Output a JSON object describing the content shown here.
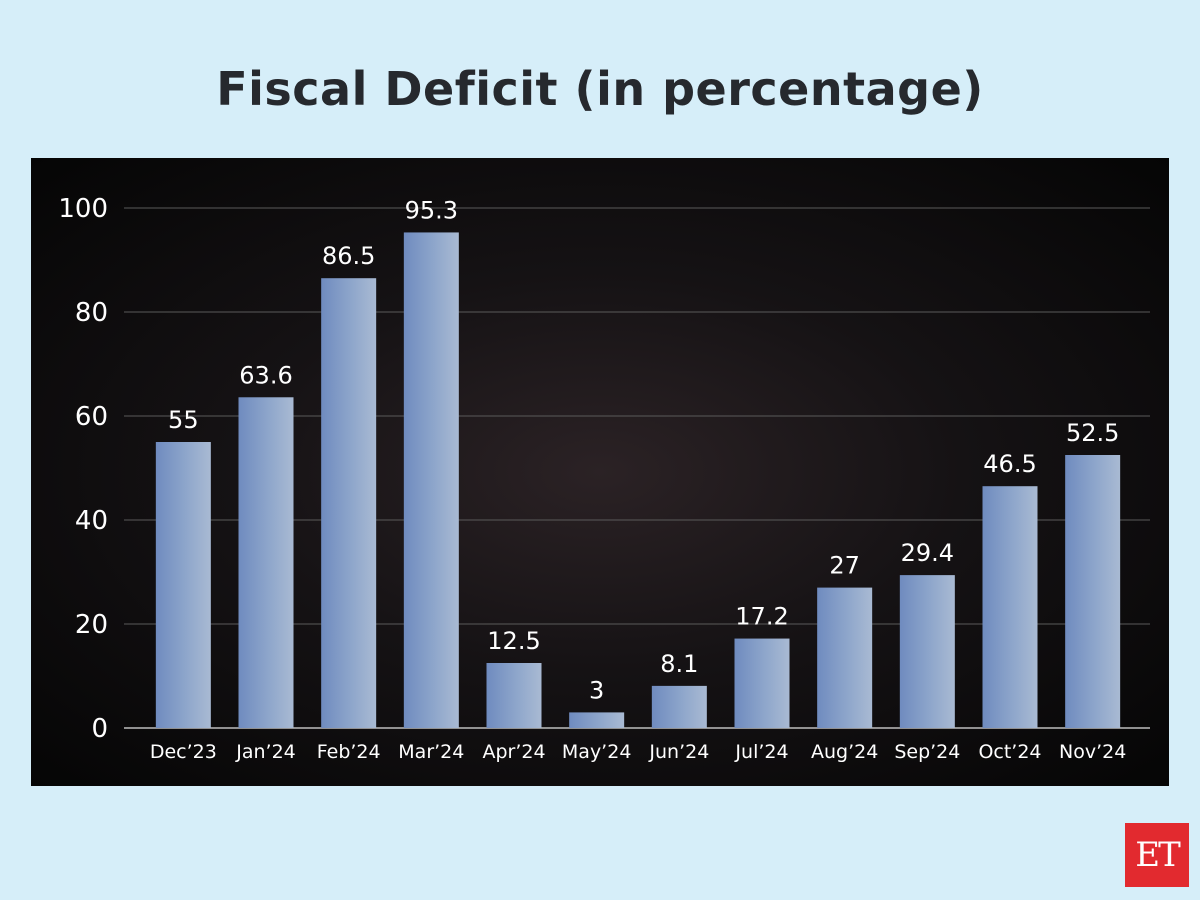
{
  "chart_data": {
    "type": "bar",
    "title": "Fiscal Deficit (in percentage)",
    "categories": [
      "Dec’23",
      "Jan’24",
      "Feb’24",
      "Mar’24",
      "Apr’24",
      "May’24",
      "Jun’24",
      "Jul’24",
      "Aug’24",
      "Sep’24",
      "Oct’24",
      "Nov’24"
    ],
    "values": [
      55,
      63.6,
      86.5,
      95.3,
      12.5,
      3,
      8.1,
      17.2,
      27,
      29.4,
      46.5,
      52.5
    ],
    "value_labels": [
      "55",
      "63.6",
      "86.5",
      "95.3",
      "12.5",
      "3",
      "8.1",
      "17.2",
      "27",
      "29.4",
      "46.5",
      "52.5"
    ],
    "ylim": [
      0,
      100
    ],
    "yticks": [
      "0",
      "20",
      "40",
      "60",
      "80",
      "100"
    ],
    "grid": true,
    "legend": "none",
    "colors": {
      "bar": "#8fa7c8",
      "gridline": "#5a5a5a",
      "text": "#ffffff"
    }
  },
  "logo": {
    "text": "ET",
    "color": "#e22a2f"
  }
}
